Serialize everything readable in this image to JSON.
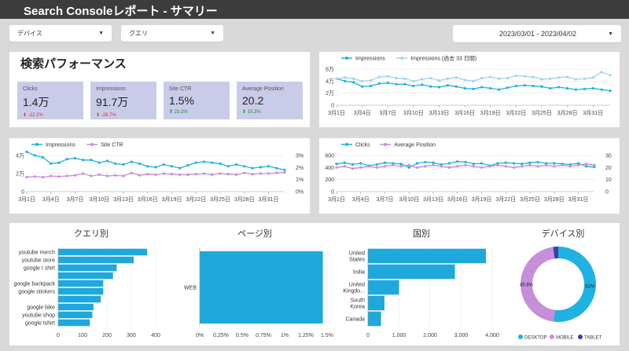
{
  "header": {
    "title": "Search Consoleレポート - サマリー"
  },
  "filters": {
    "device": "デバイス",
    "query": "クエリ",
    "date_range": "2023/03/01 - 2023/04/02"
  },
  "summary": {
    "title": "検索パフォーマンス",
    "kpis": [
      {
        "label": "Clicks",
        "value": "1.4万",
        "delta": "-12.2%",
        "direction": "down"
      },
      {
        "label": "Impressions",
        "value": "91.7万",
        "delta": "-28.7%",
        "direction": "down"
      },
      {
        "label": "Site CTR",
        "value": "1.5%",
        "delta": "23.2%",
        "direction": "up"
      },
      {
        "label": "Average Position",
        "value": "20.2",
        "delta": "15.3%",
        "direction": "up"
      }
    ]
  },
  "colors": {
    "primary": "#1fb1e1",
    "light": "#9ed3ef",
    "purple": "#c78ed9",
    "tablet": "#3a3ea8",
    "bar": "#1ea8dc"
  },
  "chart_data": [
    {
      "type": "line",
      "x": [
        "3月1日",
        "3月2日",
        "3月3日",
        "3月4日",
        "3月5日",
        "3月6日",
        "3月7日",
        "3月8日",
        "3月9日",
        "3月10日",
        "3月11日",
        "3月12日",
        "3月13日",
        "3月14日",
        "3月15日",
        "3月16日",
        "3月17日",
        "3月18日",
        "3月19日",
        "3月20日",
        "3月21日",
        "3月22日",
        "3月23日",
        "3月24日",
        "3月25日",
        "3月26日",
        "3月27日",
        "3月28日",
        "3月29日",
        "3月30日",
        "3月31日",
        "4月1日",
        "4月2日"
      ],
      "x_tick_labels": [
        "3月1日",
        "3月4日",
        "3月7日",
        "3月10日",
        "3月13日",
        "3月16日",
        "3月19日",
        "3月22日",
        "3月25日",
        "3月28日",
        "3月31日"
      ],
      "series": [
        {
          "name": "Impressions",
          "axis": "left",
          "values": [
            44000,
            40000,
            38000,
            31000,
            32000,
            36000,
            37000,
            35000,
            35000,
            32000,
            34000,
            31000,
            30000,
            33000,
            31000,
            28000,
            27000,
            30000,
            28000,
            26000,
            29000,
            32000,
            33000,
            32000,
            31000,
            28000,
            30000,
            28000,
            26000,
            27000,
            28000,
            26000,
            24000
          ]
        },
        {
          "name": "Impressions (過去 33 日間)",
          "axis": "left",
          "values": [
            44000,
            46000,
            44000,
            40000,
            41000,
            47000,
            48000,
            45000,
            44000,
            40000,
            43000,
            45000,
            41000,
            44000,
            46000,
            42000,
            40000,
            45000,
            47000,
            44000,
            45000,
            49000,
            48000,
            47000,
            43000,
            44000,
            46000,
            47000,
            43000,
            44000,
            46000,
            55000,
            50000
          ]
        }
      ],
      "y_ticks": [
        "0",
        "2万",
        "4万",
        "6万"
      ],
      "ylim": [
        0,
        60000
      ]
    },
    {
      "type": "line",
      "x_tick_labels": [
        "3月1日",
        "3月4日",
        "3月7日",
        "3月10日",
        "3月13日",
        "3月16日",
        "3月19日",
        "3月22日",
        "3月25日",
        "3月28日",
        "3月31日"
      ],
      "series": [
        {
          "name": "Impressions",
          "axis": "left",
          "values": [
            44000,
            40000,
            38000,
            31000,
            32000,
            36000,
            37000,
            35000,
            35000,
            32000,
            34000,
            31000,
            30000,
            33000,
            31000,
            28000,
            27000,
            30000,
            28000,
            26000,
            29000,
            32000,
            33000,
            32000,
            31000,
            28000,
            30000,
            28000,
            26000,
            27000,
            28000,
            26000,
            24000
          ]
        },
        {
          "name": "Site CTR",
          "axis": "right",
          "values": [
            1.2,
            1.25,
            1.2,
            1.3,
            1.25,
            1.3,
            1.35,
            1.5,
            1.3,
            1.4,
            1.3,
            1.35,
            1.3,
            1.55,
            1.35,
            1.45,
            1.4,
            1.5,
            1.45,
            1.4,
            1.4,
            1.45,
            1.5,
            1.4,
            1.5,
            1.45,
            1.4,
            1.55,
            1.45,
            1.5,
            1.5,
            1.55,
            1.6
          ]
        }
      ],
      "y_ticks": [
        "0",
        "2万",
        "4万"
      ],
      "y2_ticks": [
        "0%",
        "1%",
        "2%",
        "3%"
      ],
      "ylim": [
        0,
        40000
      ],
      "y2lim": [
        0,
        3
      ]
    },
    {
      "type": "line",
      "x_tick_labels": [
        "3月1日",
        "3月4日",
        "3月7日",
        "3月10日",
        "3月13日",
        "3月16日",
        "3月19日",
        "3月22日",
        "3月25日",
        "3月28日",
        "3月31日"
      ],
      "series": [
        {
          "name": "Clicks",
          "axis": "left",
          "values": [
            460,
            480,
            450,
            470,
            430,
            450,
            480,
            470,
            460,
            400,
            470,
            490,
            480,
            450,
            470,
            500,
            490,
            460,
            470,
            430,
            470,
            480,
            470,
            460,
            480,
            490,
            470,
            470,
            460,
            450,
            470,
            420,
            410
          ]
        },
        {
          "name": "Average Position",
          "axis": "right",
          "values": [
            20,
            21,
            19,
            20,
            21,
            20,
            21,
            22,
            21,
            22,
            20,
            21,
            22,
            21,
            20,
            21,
            22,
            21,
            20,
            21,
            22,
            21,
            20,
            21,
            22,
            21,
            22,
            21,
            22,
            21,
            22,
            23,
            22
          ]
        }
      ],
      "y_ticks": [
        "0",
        "200",
        "400",
        "600"
      ],
      "y2_ticks": [
        "0",
        "10",
        "20",
        "30"
      ],
      "ylim": [
        0,
        600
      ],
      "y2lim": [
        0,
        30
      ]
    },
    {
      "type": "bar",
      "orientation": "horizontal",
      "title": "クエリ別",
      "categories": [
        "youtube merch",
        "youtube store",
        "google t shirt",
        "",
        "google backpack",
        "google stickers",
        "",
        "google bike",
        "youtube shop",
        "google tshirt"
      ],
      "values": [
        365,
        310,
        240,
        225,
        185,
        185,
        175,
        145,
        140,
        130
      ],
      "x_ticks": [
        "0",
        "100",
        "200",
        "300",
        "400"
      ],
      "xlim": [
        0,
        400
      ]
    },
    {
      "type": "bar",
      "orientation": "horizontal",
      "title": "ページ別",
      "categories": [
        "WEB"
      ],
      "values": [
        1.45
      ],
      "x_ticks": [
        "0%",
        "0.25%",
        "0.5%",
        "0.75%",
        "1%",
        "1.25%",
        "1.5%"
      ],
      "xlim": [
        0,
        1.5
      ]
    },
    {
      "type": "bar",
      "orientation": "horizontal",
      "title": "国別",
      "categories": [
        "United States",
        "India",
        "United Kingdo...",
        "South Korea",
        "Canada"
      ],
      "values": [
        3800,
        2800,
        1000,
        530,
        420
      ],
      "x_ticks": [
        "0",
        "1,000",
        "2,000",
        "3,000",
        "4,000"
      ],
      "xlim": [
        0,
        4000
      ]
    },
    {
      "type": "pie",
      "title": "デバイス別",
      "categories": [
        "DESKTOP",
        "MOBILE",
        "TABLET"
      ],
      "values": [
        52,
        45.8,
        2.2
      ],
      "labels": [
        "52%",
        "45.8%",
        ""
      ]
    }
  ]
}
